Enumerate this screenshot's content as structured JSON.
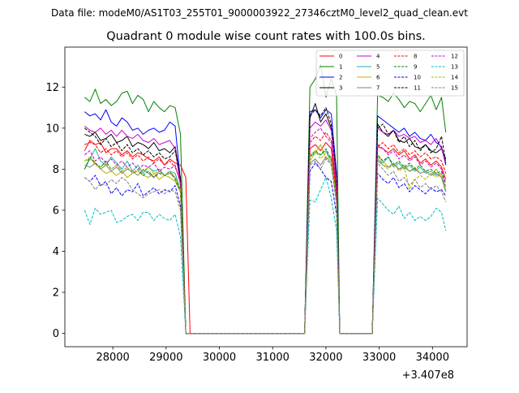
{
  "suptitle": "Data file: modeM0/AS1T03_255T01_9000003922_27346cztM0_level2_quad_clean.evt",
  "chart_data": {
    "type": "line",
    "title": "Quadrant 0 module wise count rates with 100.0s bins.",
    "xlabel": "",
    "ylabel": "",
    "x_offset_label": "+3.407e8",
    "xlim": [
      27100,
      34650
    ],
    "ylim": [
      -0.65,
      13.95
    ],
    "xticks": [
      28000,
      29000,
      30000,
      31000,
      32000,
      33000,
      34000
    ],
    "xtick_labels": [
      "28000",
      "29000",
      "30000",
      "31000",
      "32000",
      "33000",
      "34000"
    ],
    "yticks": [
      0,
      2,
      4,
      6,
      8,
      10,
      12
    ],
    "ytick_labels": [
      "0",
      "2",
      "4",
      "6",
      "8",
      "10",
      "12"
    ],
    "grid": false,
    "legend_location": "top-right",
    "legend_columns": 4,
    "segments": [
      {
        "name": "A",
        "x": [
          27470,
          27570,
          27670,
          27770,
          27870,
          27970,
          28070,
          28170,
          28270,
          28370,
          28470,
          28570,
          28670,
          28770,
          28870,
          28970,
          29070,
          29170,
          29270,
          29370,
          29450
        ]
      },
      {
        "name": "gap1",
        "x": [
          29450,
          31600
        ]
      },
      {
        "name": "B",
        "x": [
          31600,
          31700,
          31800,
          31900,
          32000,
          32100,
          32200,
          32260
        ]
      },
      {
        "name": "gap2",
        "x": [
          32260,
          32870
        ]
      },
      {
        "name": "C",
        "x": [
          32870,
          32970,
          33070,
          33170,
          33270,
          33370,
          33470,
          33570,
          33670,
          33770,
          33870,
          33970,
          34070,
          34170,
          34250
        ]
      }
    ],
    "series": [
      {
        "name": "0",
        "color": "#ff0000",
        "dash": "solid",
        "A": [
          8.9,
          9.4,
          9.2,
          9.3,
          8.8,
          9.0,
          9.0,
          8.7,
          8.9,
          8.6,
          8.8,
          8.7,
          8.5,
          8.4,
          8.6,
          8.2,
          8.5,
          8.3,
          8.2,
          7.6,
          0.0
        ],
        "B": [
          0.0,
          9.0,
          9.2,
          8.9,
          9.3,
          9.0,
          6.8,
          0.0
        ],
        "C": [
          0.0,
          9.1,
          9.0,
          8.8,
          9.0,
          8.7,
          8.9,
          8.5,
          8.7,
          8.3,
          8.5,
          8.2,
          8.4,
          8.1,
          7.5
        ]
      },
      {
        "name": "1",
        "color": "#008000",
        "dash": "solid",
        "A": [
          11.5,
          11.3,
          11.9,
          11.2,
          11.4,
          11.1,
          11.3,
          11.7,
          11.8,
          11.2,
          11.6,
          11.4,
          10.8,
          11.3,
          11.0,
          10.8,
          11.1,
          11.0,
          9.7,
          0.0,
          0.0
        ],
        "B": [
          0.0,
          12.0,
          12.4,
          13.1,
          11.5,
          12.4,
          11.6,
          0.0
        ],
        "C": [
          0.0,
          11.6,
          11.5,
          11.3,
          11.7,
          11.4,
          11.0,
          11.3,
          11.2,
          10.8,
          11.2,
          11.6,
          10.9,
          11.5,
          9.8
        ]
      },
      {
        "name": "2",
        "color": "#0000ff",
        "dash": "solid",
        "A": [
          10.8,
          10.6,
          10.7,
          10.4,
          10.9,
          10.3,
          10.1,
          10.5,
          10.3,
          9.9,
          10.0,
          9.7,
          9.9,
          10.0,
          9.8,
          9.9,
          10.3,
          10.1,
          7.4,
          0.0,
          0.0
        ],
        "B": [
          0.0,
          10.8,
          10.9,
          10.5,
          10.9,
          10.7,
          7.8,
          0.0
        ],
        "C": [
          0.0,
          10.6,
          10.4,
          10.2,
          10.0,
          9.8,
          10.0,
          9.6,
          9.8,
          9.5,
          9.4,
          9.7,
          9.3,
          9.1,
          8.2
        ]
      },
      {
        "name": "3",
        "color": "#000000",
        "dash": "solid",
        "A": [
          9.7,
          9.6,
          9.8,
          9.4,
          9.5,
          9.7,
          9.3,
          9.4,
          9.6,
          9.1,
          9.3,
          9.2,
          9.0,
          9.3,
          8.9,
          9.0,
          8.8,
          9.1,
          7.5,
          0.0,
          0.0
        ],
        "B": [
          0.0,
          10.5,
          11.2,
          10.3,
          10.7,
          10.0,
          7.5,
          0.0
        ],
        "C": [
          0.0,
          10.2,
          9.8,
          9.6,
          9.9,
          9.4,
          9.3,
          9.5,
          9.1,
          9.0,
          9.2,
          8.9,
          8.8,
          9.0,
          8.5
        ]
      },
      {
        "name": "4",
        "color": "#cc00cc",
        "dash": "solid",
        "A": [
          10.1,
          9.9,
          9.8,
          10.0,
          9.7,
          9.9,
          9.6,
          9.9,
          9.6,
          9.5,
          9.7,
          9.4,
          9.3,
          9.5,
          9.2,
          9.3,
          9.4,
          9.0,
          7.2,
          0.0,
          0.0
        ],
        "B": [
          0.0,
          10.0,
          10.3,
          10.1,
          10.4,
          9.9,
          7.4,
          0.0
        ],
        "C": [
          0.0,
          10.0,
          9.8,
          9.7,
          9.9,
          9.6,
          9.7,
          9.5,
          9.6,
          9.3,
          9.4,
          9.2,
          9.5,
          9.0,
          8.3
        ]
      },
      {
        "name": "5",
        "color": "#20b2aa",
        "dash": "solid",
        "A": [
          8.0,
          8.5,
          9.0,
          8.4,
          8.2,
          8.6,
          8.3,
          8.0,
          8.4,
          7.9,
          8.2,
          7.8,
          8.1,
          7.9,
          8.0,
          7.7,
          7.9,
          7.8,
          7.0,
          0.0,
          0.0
        ],
        "B": [
          0.0,
          8.6,
          8.8,
          8.7,
          8.9,
          8.4,
          6.3,
          0.0
        ],
        "C": [
          0.0,
          8.5,
          8.3,
          8.6,
          8.1,
          8.3,
          8.0,
          8.2,
          7.9,
          8.1,
          7.8,
          7.9,
          7.7,
          7.8,
          6.9
        ]
      },
      {
        "name": "6",
        "color": "#b5b500",
        "dash": "solid",
        "A": [
          8.4,
          8.5,
          8.3,
          8.0,
          7.8,
          7.9,
          7.7,
          7.9,
          7.6,
          7.8,
          7.9,
          7.7,
          7.6,
          7.8,
          7.5,
          7.7,
          7.6,
          7.4,
          6.9,
          0.0,
          0.0
        ],
        "B": [
          0.0,
          8.4,
          8.8,
          9.2,
          8.5,
          8.6,
          6.5,
          0.0
        ],
        "C": [
          0.0,
          8.6,
          8.4,
          8.1,
          8.3,
          8.0,
          8.2,
          7.9,
          8.1,
          7.8,
          7.9,
          7.7,
          8.0,
          7.6,
          6.9
        ]
      },
      {
        "name": "7",
        "color": "#808080",
        "dash": "solid",
        "A": [
          8.2,
          8.1,
          8.3,
          8.0,
          8.2,
          7.9,
          8.1,
          7.8,
          8.0,
          7.9,
          7.7,
          8.0,
          7.8,
          7.6,
          7.9,
          7.7,
          7.8,
          7.6,
          7.0,
          0.0,
          0.0
        ],
        "B": [
          0.0,
          8.3,
          8.5,
          8.2,
          8.6,
          8.3,
          6.4,
          0.0
        ],
        "C": [
          0.0,
          8.4,
          8.2,
          8.1,
          8.3,
          8.0,
          8.1,
          7.9,
          8.0,
          7.8,
          7.9,
          7.7,
          7.8,
          7.6,
          6.9
        ]
      },
      {
        "name": "8",
        "color": "#ff0000",
        "dash": "dashed",
        "A": [
          9.2,
          9.3,
          9.2,
          8.8,
          9.0,
          8.7,
          8.9,
          8.6,
          8.8,
          8.5,
          8.7,
          8.4,
          8.6,
          8.3,
          8.5,
          8.2,
          8.4,
          8.1,
          7.4,
          0.0,
          0.0
        ],
        "B": [
          0.0,
          9.3,
          9.6,
          9.4,
          9.8,
          9.4,
          7.0,
          0.0
        ],
        "C": [
          0.0,
          9.1,
          9.3,
          9.0,
          9.2,
          8.8,
          9.0,
          8.7,
          8.9,
          8.6,
          8.8,
          8.5,
          8.6,
          8.4,
          7.8
        ]
      },
      {
        "name": "9",
        "color": "#008000",
        "dash": "dashed",
        "A": [
          8.0,
          8.6,
          8.3,
          8.1,
          8.4,
          8.0,
          8.2,
          7.9,
          8.1,
          7.8,
          8.0,
          7.7,
          7.9,
          7.6,
          7.8,
          7.7,
          7.9,
          7.5,
          6.9,
          0.0,
          0.0
        ],
        "B": [
          0.0,
          8.6,
          8.9,
          8.7,
          9.0,
          8.5,
          6.5,
          0.0
        ],
        "C": [
          0.0,
          8.7,
          8.4,
          8.6,
          8.2,
          8.4,
          8.1,
          8.3,
          8.0,
          8.2,
          7.9,
          8.0,
          7.8,
          7.9,
          7.1
        ]
      },
      {
        "name": "10",
        "color": "#0000ff",
        "dash": "dashed",
        "A": [
          7.6,
          7.4,
          7.7,
          7.2,
          7.4,
          6.8,
          7.1,
          6.7,
          7.0,
          6.9,
          7.3,
          6.7,
          6.9,
          7.1,
          6.8,
          7.0,
          6.9,
          7.2,
          6.2,
          0.0,
          0.0
        ],
        "B": [
          0.0,
          7.9,
          8.3,
          8.0,
          7.6,
          7.4,
          5.8,
          0.0
        ],
        "C": [
          0.0,
          7.8,
          7.5,
          7.3,
          7.6,
          7.1,
          7.3,
          6.9,
          7.2,
          7.0,
          6.8,
          7.1,
          6.9,
          7.0,
          6.7
        ]
      },
      {
        "name": "11",
        "color": "#000000",
        "dash": "dashed",
        "A": [
          10.0,
          9.8,
          9.6,
          9.2,
          9.5,
          9.1,
          9.3,
          8.9,
          9.2,
          8.8,
          9.0,
          8.7,
          8.9,
          8.6,
          8.8,
          8.5,
          8.6,
          8.9,
          7.6,
          0.0,
          0.0
        ],
        "B": [
          0.0,
          10.6,
          10.9,
          10.6,
          11.0,
          10.2,
          7.6,
          0.0
        ],
        "C": [
          0.0,
          10.0,
          10.2,
          9.7,
          9.9,
          9.3,
          9.6,
          9.1,
          9.4,
          8.9,
          9.2,
          8.8,
          9.0,
          9.6,
          8.3
        ]
      },
      {
        "name": "12",
        "color": "#cc00cc",
        "dash": "dashed",
        "A": [
          8.7,
          8.9,
          8.4,
          8.6,
          8.3,
          8.5,
          8.2,
          8.4,
          8.1,
          8.3,
          8.0,
          8.2,
          8.1,
          8.3,
          7.9,
          8.1,
          8.0,
          8.2,
          7.3,
          0.0,
          0.0
        ],
        "B": [
          0.0,
          9.5,
          9.8,
          10.0,
          9.6,
          9.3,
          7.1,
          0.0
        ],
        "C": [
          0.0,
          9.2,
          9.0,
          8.7,
          8.9,
          8.5,
          8.7,
          8.4,
          8.6,
          8.2,
          8.4,
          8.1,
          8.3,
          8.0,
          7.3
        ]
      },
      {
        "name": "13",
        "color": "#00bfbf",
        "dash": "dashed",
        "A": [
          6.0,
          5.3,
          6.1,
          5.8,
          5.9,
          6.0,
          5.4,
          5.5,
          5.7,
          5.8,
          5.5,
          5.9,
          5.9,
          5.5,
          5.8,
          5.6,
          5.5,
          5.8,
          4.7,
          0.0,
          0.0
        ],
        "B": [
          0.0,
          6.5,
          6.4,
          7.0,
          7.6,
          6.6,
          5.0,
          0.0
        ],
        "C": [
          0.0,
          6.6,
          6.3,
          6.0,
          5.8,
          6.2,
          5.6,
          5.9,
          5.5,
          5.7,
          5.5,
          5.7,
          6.1,
          5.9,
          5.0
        ]
      },
      {
        "name": "14",
        "color": "#b5b500",
        "dash": "dashed",
        "A": [
          8.4,
          8.6,
          8.2,
          8.1,
          8.3,
          8.0,
          8.2,
          7.9,
          8.1,
          7.8,
          8.0,
          7.9,
          8.1,
          7.8,
          7.9,
          7.7,
          7.9,
          7.6,
          7.0,
          0.0,
          0.0
        ],
        "B": [
          0.0,
          8.7,
          8.9,
          8.5,
          8.8,
          8.4,
          6.4,
          0.0
        ],
        "C": [
          0.0,
          8.5,
          8.2,
          8.0,
          8.3,
          7.9,
          8.1,
          7.0,
          7.5,
          7.7,
          7.5,
          7.8,
          7.6,
          7.8,
          7.0
        ]
      },
      {
        "name": "15",
        "color": "#808080",
        "dash": "dashed",
        "A": [
          7.6,
          7.4,
          7.0,
          7.3,
          7.2,
          7.5,
          7.3,
          7.6,
          7.4,
          7.0,
          6.8,
          6.6,
          6.8,
          6.9,
          7.0,
          6.8,
          7.0,
          6.9,
          6.0,
          0.0,
          0.0
        ],
        "B": [
          0.0,
          8.2,
          8.4,
          8.0,
          8.5,
          8.2,
          6.3,
          0.0
        ],
        "C": [
          0.0,
          8.3,
          8.0,
          7.7,
          7.9,
          7.4,
          7.6,
          7.2,
          7.5,
          7.1,
          7.3,
          7.0,
          7.2,
          6.9,
          6.4
        ]
      }
    ]
  }
}
